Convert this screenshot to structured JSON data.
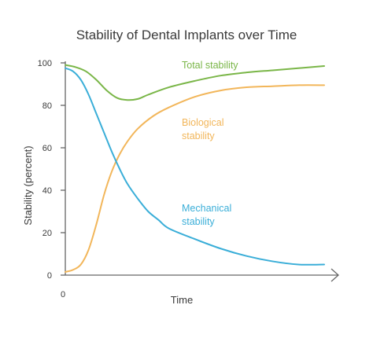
{
  "chart_data": {
    "type": "line",
    "title": "Stability of Dental Implants over Time",
    "xlabel": "Time",
    "ylabel": "Stability (percent)",
    "x_ticks": [
      "0"
    ],
    "y_ticks": [
      0,
      20,
      40,
      60,
      80,
      100
    ],
    "xlim": [
      0,
      100
    ],
    "ylim": [
      0,
      100
    ],
    "grid": false,
    "legend": "inline labels",
    "series": [
      {
        "name": "Total stability",
        "label_lines": [
          "Total stability"
        ],
        "color": "#7ab648",
        "x": [
          0,
          4,
          8,
          12,
          16,
          20,
          24,
          28,
          32,
          40,
          50,
          60,
          70,
          80,
          90,
          100
        ],
        "y": [
          99,
          98,
          96,
          92,
          87,
          83.5,
          82.5,
          83,
          85,
          88.5,
          91.5,
          94,
          95.5,
          96.5,
          97.5,
          98.5
        ]
      },
      {
        "name": "Biological stability",
        "label_lines": [
          "Biological",
          "stability"
        ],
        "color": "#f2b65a",
        "x": [
          0,
          3,
          6,
          9,
          12,
          15,
          18,
          21,
          24,
          28,
          34,
          40,
          50,
          60,
          70,
          80,
          90,
          100
        ],
        "y": [
          1.5,
          2.5,
          5,
          12,
          24,
          38,
          49,
          57,
          63,
          69,
          75,
          79,
          84,
          87,
          88.5,
          89,
          89.5,
          89.5
        ]
      },
      {
        "name": "Mechanical stability",
        "label_lines": [
          "Mechanical",
          "stability"
        ],
        "color": "#3aaed8",
        "x": [
          0,
          3,
          6,
          9,
          12,
          15,
          18,
          21,
          24,
          28,
          32,
          36,
          40,
          50,
          60,
          70,
          80,
          90,
          100
        ],
        "y": [
          97.5,
          96,
          92,
          85,
          76,
          67,
          58,
          50,
          43,
          36,
          30,
          26,
          22,
          17,
          12.5,
          9,
          6.5,
          5,
          5
        ]
      }
    ]
  }
}
